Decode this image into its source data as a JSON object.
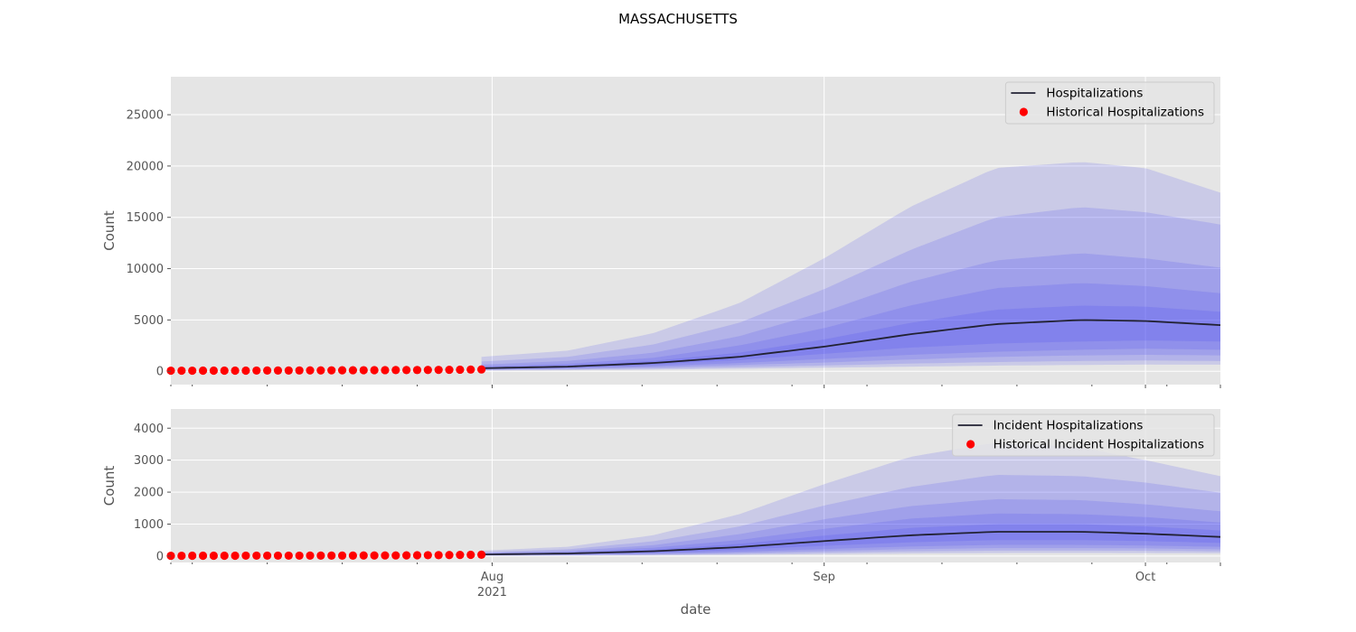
{
  "figure": {
    "title": "MASSACHUSETTS"
  },
  "chart_data": [
    {
      "type": "line",
      "title": "",
      "ylabel": "Count",
      "xlabel": "",
      "ylim": [
        -1300,
        28700
      ],
      "xlim": [
        "2021-07-02",
        "2021-10-08"
      ],
      "yticks": [
        0,
        5000,
        10000,
        15000,
        20000,
        25000
      ],
      "grid": true,
      "legend_position": "top-right",
      "legend": [
        "Hospitalizations",
        "Historical Hospitalizations"
      ],
      "colors": {
        "line": "#222233",
        "historical": "#ff0000",
        "band": "#3c3cf0",
        "background": "#e5e5e5"
      },
      "historical": {
        "name": "Historical Hospitalizations",
        "start": "2021-07-02",
        "end": "2021-07-31",
        "values": [
          60,
          60,
          60,
          62,
          62,
          64,
          66,
          66,
          70,
          72,
          74,
          76,
          80,
          84,
          88,
          92,
          96,
          100,
          104,
          108,
          112,
          116,
          120,
          124,
          130,
          136,
          144,
          156,
          166,
          178
        ]
      },
      "forecast": {
        "name": "Hospitalizations",
        "dates": [
          "2021-07-31",
          "2021-08-08",
          "2021-08-16",
          "2021-08-24",
          "2021-09-01",
          "2021-09-09",
          "2021-09-17",
          "2021-09-25",
          "2021-10-01",
          "2021-10-08"
        ],
        "median": [
          300,
          450,
          800,
          1400,
          2400,
          3600,
          4600,
          5000,
          4900,
          4500
        ],
        "bands": [
          {
            "lower": [
              250,
              380,
              650,
              1100,
              1700,
              2300,
              2700,
              2900,
              3000,
              2900
            ],
            "upper": [
              370,
              560,
              1000,
              1800,
              3100,
              4700,
              6000,
              6400,
              6300,
              5800
            ]
          },
          {
            "lower": [
              200,
              300,
              500,
              800,
              1200,
              1600,
              1900,
              2100,
              2200,
              2100
            ],
            "upper": [
              480,
              720,
              1300,
              2500,
              4200,
              6400,
              8100,
              8600,
              8300,
              7600
            ]
          },
          {
            "lower": [
              160,
              240,
              380,
              600,
              850,
              1150,
              1400,
              1550,
              1600,
              1550
            ],
            "upper": [
              650,
              1000,
              1800,
              3400,
              5800,
              8700,
              10800,
              11500,
              11000,
              10100
            ]
          },
          {
            "lower": [
              110,
              170,
              260,
              400,
              560,
              750,
              900,
              1000,
              1050,
              1000
            ],
            "upper": [
              950,
              1400,
              2600,
              4700,
              8000,
              11800,
              15000,
              16000,
              15500,
              14300
            ]
          },
          {
            "lower": [
              60,
              100,
              160,
              250,
              350,
              450,
              550,
              620,
              650,
              640
            ],
            "upper": [
              1400,
              2000,
              3700,
              6600,
              11000,
              16000,
              19800,
              20400,
              19800,
              17400
            ]
          }
        ]
      }
    },
    {
      "type": "line",
      "title": "",
      "ylabel": "Count",
      "xlabel": "date",
      "ylim": [
        -200,
        4600
      ],
      "xlim": [
        "2021-07-02",
        "2021-10-08"
      ],
      "yticks": [
        0,
        1000,
        2000,
        3000,
        4000
      ],
      "xticks": [
        {
          "date": "2021-08-01",
          "label": "Aug",
          "sublabel": "2021"
        },
        {
          "date": "2021-09-01",
          "label": "Sep",
          "sublabel": ""
        },
        {
          "date": "2021-10-01",
          "label": "Oct",
          "sublabel": ""
        }
      ],
      "grid": true,
      "legend_position": "top-right",
      "legend": [
        "Incident Hospitalizations",
        "Historical Incident Hospitalizations"
      ],
      "colors": {
        "line": "#222233",
        "historical": "#ff0000",
        "band": "#3c3cf0",
        "background": "#e5e5e5"
      },
      "historical": {
        "name": "Historical Incident Hospitalizations",
        "start": "2021-07-02",
        "end": "2021-07-31",
        "values": [
          10,
          10,
          12,
          12,
          12,
          12,
          12,
          14,
          14,
          14,
          14,
          14,
          14,
          16,
          16,
          16,
          16,
          16,
          18,
          18,
          20,
          20,
          22,
          26,
          28,
          30,
          34,
          36,
          40,
          44
        ]
      },
      "forecast": {
        "name": "Incident Hospitalizations",
        "dates": [
          "2021-07-31",
          "2021-08-08",
          "2021-08-16",
          "2021-08-24",
          "2021-09-01",
          "2021-09-09",
          "2021-09-17",
          "2021-09-25",
          "2021-10-01",
          "2021-10-08"
        ],
        "median": [
          50,
          80,
          150,
          280,
          470,
          650,
          760,
          760,
          700,
          600
        ],
        "bands": [
          {
            "lower": [
              40,
              60,
              110,
              200,
              320,
              430,
              500,
              500,
              470,
              410
            ],
            "upper": [
              60,
              100,
              200,
              380,
              640,
              880,
              1000,
              1000,
              930,
              800
            ]
          },
          {
            "lower": [
              30,
              45,
              80,
              140,
              220,
              300,
              350,
              350,
              330,
              290
            ],
            "upper": [
              75,
              125,
              260,
              500,
              850,
              1170,
              1330,
              1310,
              1220,
              1050
            ]
          },
          {
            "lower": [
              22,
              34,
              58,
              100,
              160,
              215,
              250,
              250,
              240,
              210
            ],
            "upper": [
              95,
              160,
              340,
              680,
              1150,
              1560,
              1780,
              1750,
              1620,
              1400
            ]
          },
          {
            "lower": [
              15,
              23,
              40,
              68,
              108,
              145,
              170,
              170,
              165,
              145
            ],
            "upper": [
              125,
              210,
              460,
              920,
              1580,
              2160,
              2540,
              2500,
              2300,
              1980
            ]
          },
          {
            "lower": [
              8,
              12,
              22,
              38,
              60,
              82,
              95,
              96,
              94,
              84
            ],
            "upper": [
              170,
              290,
              650,
              1300,
              2250,
              3100,
              3550,
              3400,
              3000,
              2500
            ]
          }
        ]
      }
    }
  ]
}
